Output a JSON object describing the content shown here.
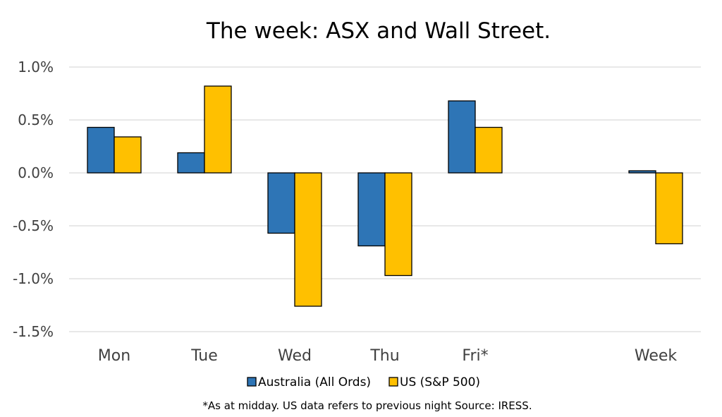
{
  "chart_data": {
    "type": "bar",
    "title": "The week:  ASX and Wall Street.",
    "categories": [
      "Mon",
      "Tue",
      "Wed",
      "Thu",
      "Fri*",
      "",
      "Week"
    ],
    "series": [
      {
        "name": "Australia (All Ords)",
        "color": "#2e75b6",
        "values": [
          0.43,
          0.19,
          -0.57,
          -0.69,
          0.68,
          null,
          0.02
        ]
      },
      {
        "name": "US (S&P 500)",
        "color": "#ffc000",
        "values": [
          0.34,
          0.82,
          -1.26,
          -0.97,
          0.43,
          null,
          -0.67
        ]
      }
    ],
    "ylim": [
      -1.5,
      1.0
    ],
    "yticks": [
      "1.0%",
      "0.5%",
      "0.0%",
      "-0.5%",
      "-1.0%",
      "-1.5%"
    ],
    "ytick_values": [
      1.0,
      0.5,
      0.0,
      -0.5,
      -1.0,
      -1.5
    ],
    "grid": true,
    "legend_position": "bottom",
    "footnote": "*As at midday. US data refers to previous night  Source:  IRESS."
  }
}
